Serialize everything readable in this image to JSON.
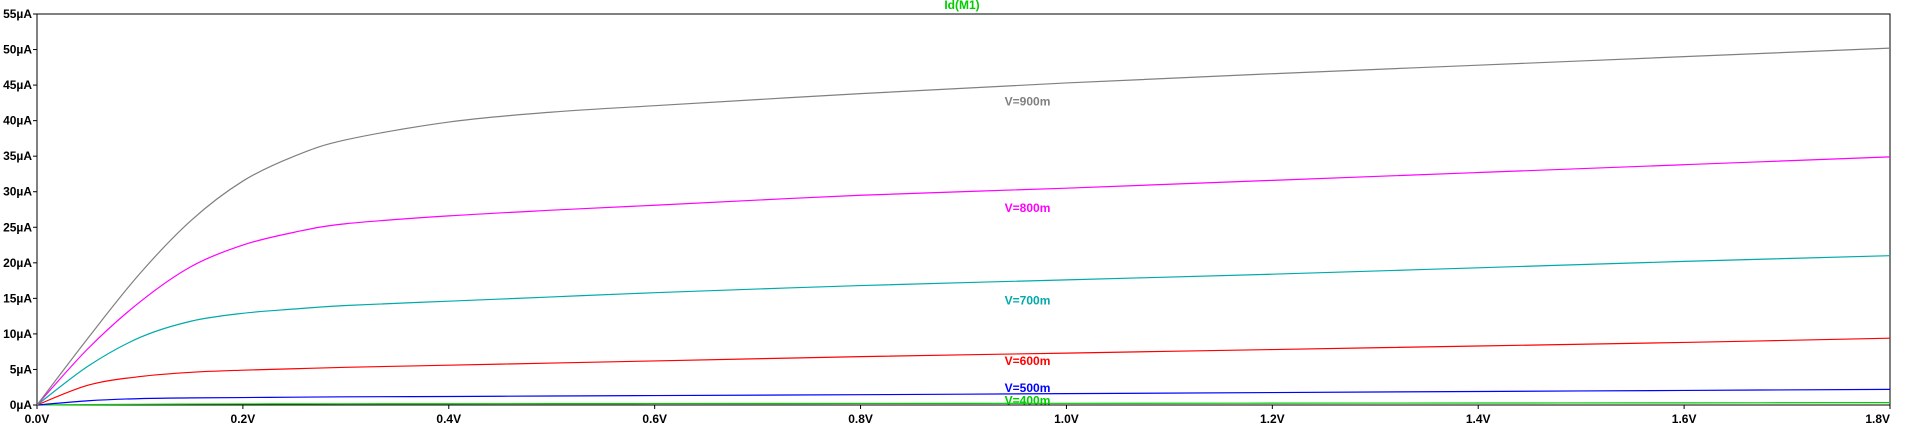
{
  "chart_data": {
    "type": "line",
    "title": "Id(M1)",
    "title_color": "#00cc00",
    "xlabel": "",
    "ylabel": "",
    "xlim": [
      0,
      1.8
    ],
    "ylim": [
      0,
      55
    ],
    "grid": false,
    "x_ticks": [
      0,
      0.2,
      0.4,
      0.6,
      0.8,
      1.0,
      1.2,
      1.4,
      1.6,
      1.8
    ],
    "x_tick_labels": [
      "0.0V",
      "0.2V",
      "0.4V",
      "0.6V",
      "0.8V",
      "1.0V",
      "1.2V",
      "1.4V",
      "1.6V",
      "1.8V"
    ],
    "y_ticks": [
      0,
      5,
      10,
      15,
      20,
      25,
      30,
      35,
      40,
      45,
      50,
      55
    ],
    "y_tick_labels": [
      "0µA",
      "5µA",
      "10µA",
      "15µA",
      "20µA",
      "25µA",
      "30µA",
      "35µA",
      "40µA",
      "45µA",
      "50µA",
      "55µA"
    ],
    "x": [
      0,
      0.05,
      0.1,
      0.15,
      0.2,
      0.25,
      0.3,
      0.4,
      0.5,
      0.6,
      0.8,
      1.0,
      1.2,
      1.4,
      1.6,
      1.8
    ],
    "series": [
      {
        "label": "V=400m",
        "color": "#00cc00",
        "values": [
          0,
          0.05,
          0.1,
          0.13,
          0.15,
          0.16,
          0.17,
          0.18,
          0.19,
          0.2,
          0.22,
          0.24,
          0.26,
          0.28,
          0.3,
          0.33
        ]
      },
      {
        "label": "V=500m",
        "color": "#0000ff",
        "values": [
          0,
          0.6,
          0.9,
          1.0,
          1.05,
          1.1,
          1.15,
          1.2,
          1.27,
          1.33,
          1.45,
          1.6,
          1.75,
          1.9,
          2.05,
          2.2
        ]
      },
      {
        "label": "V=600m",
        "color": "#ff0000",
        "values": [
          0,
          2.8,
          4.0,
          4.6,
          4.9,
          5.1,
          5.3,
          5.6,
          5.9,
          6.2,
          6.8,
          7.3,
          7.8,
          8.3,
          8.8,
          9.4
        ]
      },
      {
        "label": "V=700m",
        "color": "#00aaaa",
        "values": [
          0,
          5.5,
          9.5,
          11.8,
          12.9,
          13.5,
          14.0,
          14.6,
          15.2,
          15.8,
          16.8,
          17.6,
          18.4,
          19.3,
          20.2,
          21.0
        ]
      },
      {
        "label": "V=800m",
        "color": "#ff00ff",
        "values": [
          0,
          8.0,
          14.5,
          19.5,
          22.5,
          24.3,
          25.5,
          26.6,
          27.4,
          28.1,
          29.5,
          30.5,
          31.6,
          32.7,
          33.8,
          34.9
        ]
      },
      {
        "label": "V=900m",
        "color": "#808080",
        "values": [
          0,
          9.5,
          18.5,
          26.0,
          31.5,
          35.0,
          37.3,
          39.8,
          41.2,
          42.1,
          43.8,
          45.3,
          46.6,
          47.8,
          49.0,
          50.2
        ]
      }
    ],
    "series_labels_at_x": [
      0.94,
      0.94,
      0.94,
      0.94,
      0.94,
      0.94
    ],
    "series_labels_at_y": [
      0.6,
      2.4,
      6.2,
      14.7,
      27.7,
      42.7
    ]
  }
}
